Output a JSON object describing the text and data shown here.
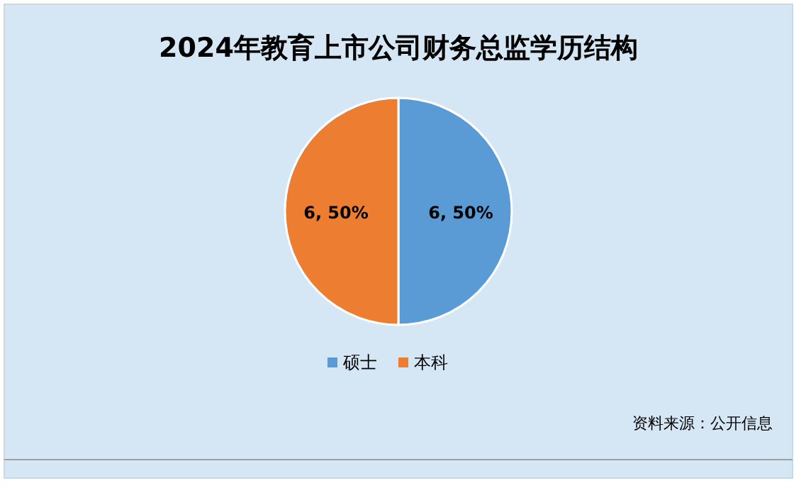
{
  "chart_data": {
    "type": "pie",
    "title": "2024年教育上市公司财务总监学历结构",
    "categories": [
      "硕士",
      "本科"
    ],
    "values": [
      6,
      6
    ],
    "colors": [
      "#5b9bd5",
      "#ed7d31"
    ],
    "value_labels": [
      "6, 50%",
      "6, 50%"
    ],
    "legend": "bottom",
    "annotations": [
      "资料来源：公开信息"
    ]
  }
}
